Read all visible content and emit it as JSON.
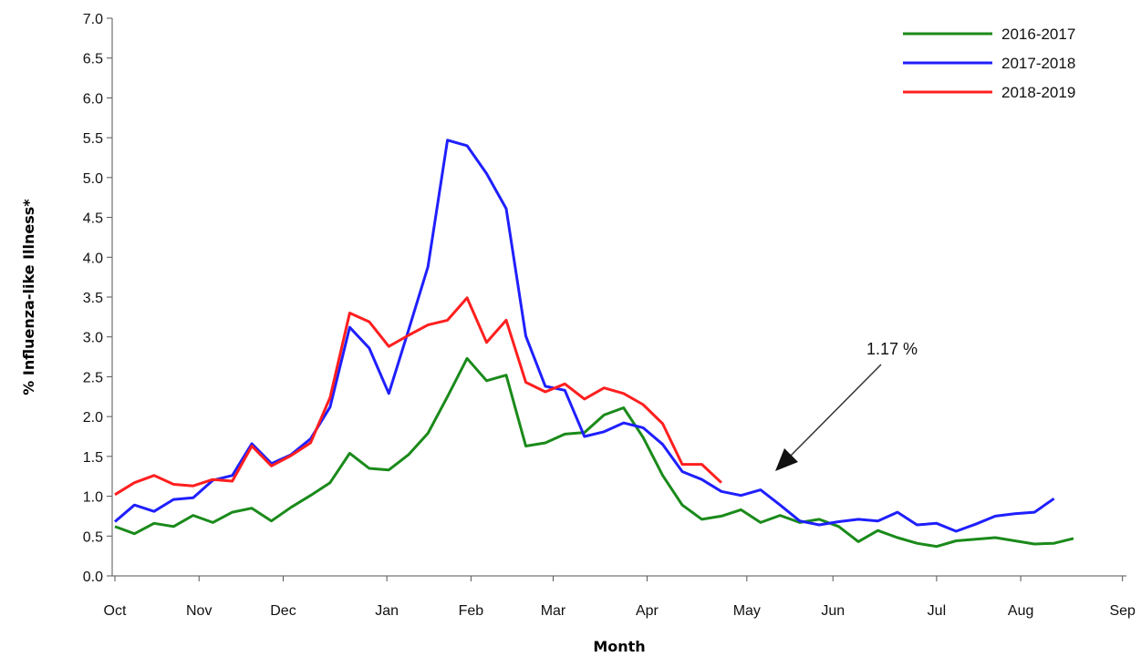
{
  "chart_data": {
    "type": "line",
    "xlabel": "Month",
    "ylabel": "% Influenza-like Illness*",
    "ylim": [
      0,
      7
    ],
    "yticks": [
      "0.0",
      "0.5",
      "1.0",
      "1.5",
      "2.0",
      "2.5",
      "3.0",
      "3.5",
      "4.0",
      "4.5",
      "5.0",
      "5.5",
      "6.0",
      "6.5",
      "7.0"
    ],
    "xlim": [
      0,
      52
    ],
    "month_ticks": [
      {
        "label": "Oct",
        "week": 0
      },
      {
        "label": "Nov",
        "week": 4.3
      },
      {
        "label": "Dec",
        "week": 8.6
      },
      {
        "label": "Jan",
        "week": 13.9
      },
      {
        "label": "Feb",
        "week": 18.2
      },
      {
        "label": "Mar",
        "week": 22.4
      },
      {
        "label": "Apr",
        "week": 27.2
      },
      {
        "label": "May",
        "week": 32.3
      },
      {
        "label": "Jun",
        "week": 36.7
      },
      {
        "label": "Jul",
        "week": 42.0
      },
      {
        "label": "Aug",
        "week": 46.3
      },
      {
        "label": "Sep",
        "week": 51.5
      }
    ],
    "grid": false,
    "legend_position": "top-right",
    "series": [
      {
        "name": "2016-2017",
        "color": "#1a8a1a",
        "values": [
          0.62,
          0.53,
          0.66,
          0.62,
          0.76,
          0.67,
          0.8,
          0.85,
          0.69,
          0.86,
          1.01,
          1.17,
          1.54,
          1.35,
          1.33,
          1.52,
          1.79,
          2.25,
          2.73,
          2.45,
          2.52,
          1.63,
          1.67,
          1.78,
          1.8,
          2.02,
          2.11,
          1.74,
          1.26,
          0.89,
          0.71,
          0.75,
          0.83,
          0.67,
          0.76,
          0.67,
          0.71,
          0.62,
          0.43,
          0.57,
          0.48,
          0.41,
          0.37,
          0.44,
          0.46,
          0.48,
          0.44,
          0.4,
          0.41,
          0.47
        ]
      },
      {
        "name": "2017-2018",
        "color": "#1f1fff",
        "values": [
          0.68,
          0.89,
          0.81,
          0.96,
          0.98,
          1.2,
          1.26,
          1.66,
          1.41,
          1.52,
          1.72,
          2.12,
          3.12,
          2.86,
          2.29,
          3.08,
          3.88,
          5.47,
          5.4,
          5.05,
          4.61,
          3.01,
          2.38,
          2.33,
          1.75,
          1.81,
          1.92,
          1.86,
          1.65,
          1.31,
          1.21,
          1.06,
          1.01,
          1.08,
          0.89,
          0.69,
          0.64,
          0.68,
          0.71,
          0.69,
          0.8,
          0.64,
          0.66,
          0.56,
          0.65,
          0.75,
          0.78,
          0.8,
          0.97
        ]
      },
      {
        "name": "2018-2019",
        "color": "#ff1f1f",
        "values": [
          1.02,
          1.17,
          1.26,
          1.15,
          1.13,
          1.21,
          1.19,
          1.63,
          1.38,
          1.51,
          1.67,
          2.24,
          3.3,
          3.19,
          2.88,
          3.02,
          3.15,
          3.21,
          3.49,
          2.93,
          3.21,
          2.43,
          2.31,
          2.41,
          2.22,
          2.36,
          2.29,
          2.15,
          1.91,
          1.4,
          1.4,
          1.17
        ]
      }
    ],
    "annotation": {
      "text": "1.17 %",
      "week": 31,
      "value": 1.17
    }
  }
}
